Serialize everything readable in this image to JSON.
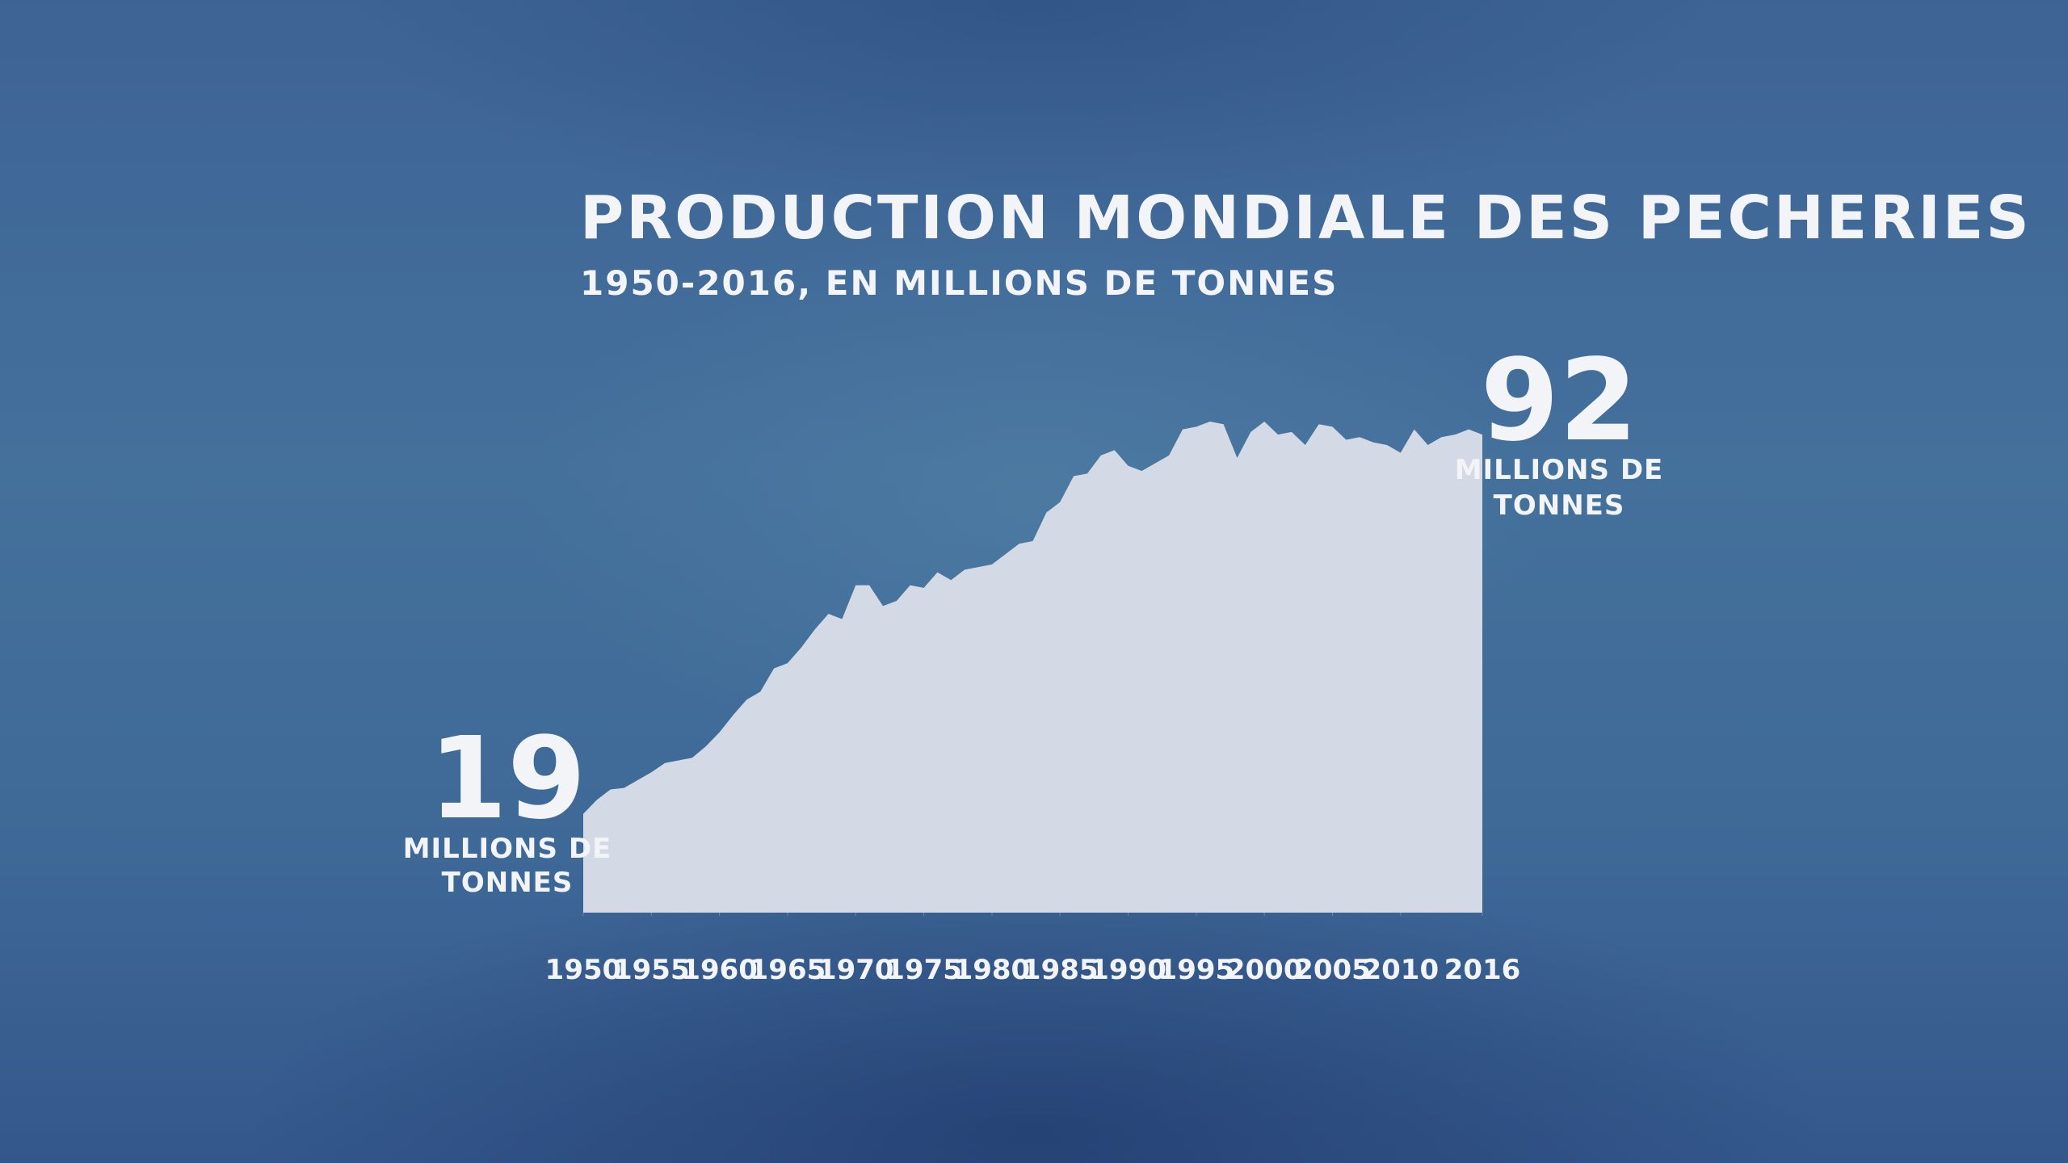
{
  "chart_data": {
    "type": "area",
    "title": "PRODUCTION MONDIALE DES PECHERIES",
    "subtitle": "1950-2016, EN MILLIONS DE TONNES",
    "x": [
      1950,
      1951,
      1952,
      1953,
      1954,
      1955,
      1956,
      1957,
      1958,
      1959,
      1960,
      1961,
      1962,
      1963,
      1964,
      1965,
      1966,
      1967,
      1968,
      1969,
      1970,
      1971,
      1972,
      1973,
      1974,
      1975,
      1976,
      1977,
      1978,
      1979,
      1980,
      1981,
      1982,
      1983,
      1984,
      1985,
      1986,
      1987,
      1988,
      1989,
      1990,
      1991,
      1992,
      1993,
      1994,
      1995,
      1996,
      1997,
      1998,
      1999,
      2000,
      2001,
      2002,
      2003,
      2004,
      2005,
      2006,
      2007,
      2008,
      2009,
      2010,
      2011,
      2012,
      2013,
      2014,
      2015,
      2016
    ],
    "values": [
      19,
      21.7,
      23.7,
      24,
      25.5,
      27,
      28.8,
      29.3,
      29.8,
      32,
      34.7,
      38,
      41,
      42.5,
      47,
      48,
      51,
      54.5,
      57.5,
      56.5,
      63,
      63,
      59,
      60,
      63,
      62.5,
      65.5,
      64,
      66,
      66.5,
      67,
      69,
      71,
      71.5,
      77,
      79,
      84,
      84.5,
      88,
      89,
      86,
      85,
      86.5,
      88,
      93,
      93.5,
      94.5,
      94,
      87.5,
      92.5,
      94.5,
      92,
      92.5,
      90,
      94,
      93.5,
      91,
      91.5,
      90.5,
      90,
      88.5,
      93,
      90,
      91.5,
      92,
      93,
      92
    ],
    "color": "#d4dae5",
    "xlim": [
      1950,
      2016
    ],
    "xticks": [
      1950,
      1955,
      1960,
      1965,
      1970,
      1975,
      1980,
      1985,
      1990,
      1995,
      2000,
      2005,
      2010,
      2016
    ],
    "annotations": [
      {
        "value": 19,
        "lines": [
          "MILLIONS DE",
          "TONNES"
        ]
      },
      {
        "value": 92,
        "lines": [
          "MILLIONS DE",
          "TONNES"
        ]
      }
    ]
  }
}
